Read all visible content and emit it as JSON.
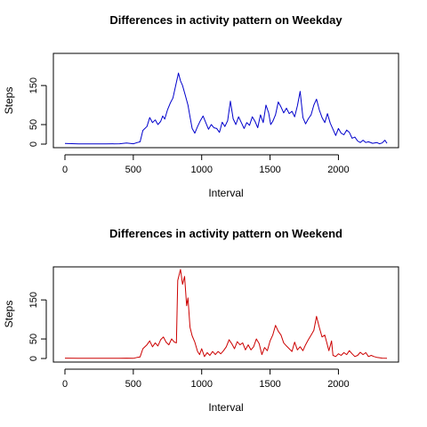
{
  "chart_data": [
    {
      "type": "line",
      "title": "Differences in activity pattern on Weekday",
      "xlabel": "Interval",
      "ylabel": "Steps",
      "xlim": [
        0,
        2355
      ],
      "ylim": [
        0,
        230
      ],
      "xticks": [
        0,
        500,
        1000,
        1500,
        2000
      ],
      "yticks": [
        0,
        50,
        150
      ],
      "color": "#0000CC",
      "series": [
        {
          "points": [
            [
              0,
              1.5
            ],
            [
              100,
              0.5
            ],
            [
              200,
              0.5
            ],
            [
              300,
              0.5
            ],
            [
              400,
              1
            ],
            [
              450,
              3
            ],
            [
              500,
              1
            ],
            [
              530,
              4
            ],
            [
              550,
              6
            ],
            [
              570,
              35
            ],
            [
              600,
              45
            ],
            [
              620,
              68
            ],
            [
              640,
              55
            ],
            [
              660,
              62
            ],
            [
              680,
              50
            ],
            [
              700,
              58
            ],
            [
              715,
              72
            ],
            [
              730,
              64
            ],
            [
              750,
              88
            ],
            [
              770,
              105
            ],
            [
              790,
              118
            ],
            [
              810,
              150
            ],
            [
              830,
              182
            ],
            [
              845,
              162
            ],
            [
              860,
              150
            ],
            [
              880,
              125
            ],
            [
              900,
              100
            ],
            [
              915,
              70
            ],
            [
              930,
              40
            ],
            [
              950,
              28
            ],
            [
              970,
              45
            ],
            [
              990,
              60
            ],
            [
              1010,
              72
            ],
            [
              1030,
              55
            ],
            [
              1050,
              38
            ],
            [
              1070,
              50
            ],
            [
              1090,
              42
            ],
            [
              1110,
              40
            ],
            [
              1130,
              30
            ],
            [
              1150,
              56
            ],
            [
              1170,
              45
            ],
            [
              1190,
              60
            ],
            [
              1210,
              110
            ],
            [
              1230,
              65
            ],
            [
              1250,
              50
            ],
            [
              1270,
              70
            ],
            [
              1290,
              55
            ],
            [
              1310,
              40
            ],
            [
              1330,
              55
            ],
            [
              1350,
              48
            ],
            [
              1370,
              70
            ],
            [
              1390,
              58
            ],
            [
              1410,
              42
            ],
            [
              1430,
              75
            ],
            [
              1450,
              55
            ],
            [
              1470,
              100
            ],
            [
              1490,
              80
            ],
            [
              1505,
              50
            ],
            [
              1520,
              58
            ],
            [
              1540,
              75
            ],
            [
              1560,
              108
            ],
            [
              1580,
              95
            ],
            [
              1600,
              80
            ],
            [
              1620,
              92
            ],
            [
              1640,
              78
            ],
            [
              1660,
              84
            ],
            [
              1680,
              70
            ],
            [
              1700,
              98
            ],
            [
              1720,
              135
            ],
            [
              1740,
              68
            ],
            [
              1760,
              52
            ],
            [
              1780,
              65
            ],
            [
              1800,
              75
            ],
            [
              1820,
              100
            ],
            [
              1840,
              115
            ],
            [
              1860,
              88
            ],
            [
              1880,
              68
            ],
            [
              1900,
              55
            ],
            [
              1920,
              78
            ],
            [
              1940,
              54
            ],
            [
              1960,
              38
            ],
            [
              1980,
              22
            ],
            [
              2000,
              40
            ],
            [
              2020,
              28
            ],
            [
              2040,
              24
            ],
            [
              2060,
              36
            ],
            [
              2080,
              30
            ],
            [
              2100,
              15
            ],
            [
              2120,
              18
            ],
            [
              2140,
              8
            ],
            [
              2160,
              4
            ],
            [
              2180,
              10
            ],
            [
              2200,
              4
            ],
            [
              2220,
              6
            ],
            [
              2250,
              2
            ],
            [
              2280,
              4
            ],
            [
              2300,
              1
            ],
            [
              2320,
              3
            ],
            [
              2340,
              10
            ],
            [
              2355,
              2
            ]
          ]
        }
      ]
    },
    {
      "type": "line",
      "title": "Differences in activity pattern on Weekend",
      "xlabel": "Interval",
      "ylabel": "Steps",
      "xlim": [
        0,
        2355
      ],
      "ylim": [
        0,
        230
      ],
      "xticks": [
        0,
        500,
        1000,
        1500,
        2000
      ],
      "yticks": [
        0,
        50,
        150
      ],
      "color": "#CC0000",
      "series": [
        {
          "points": [
            [
              0,
              1
            ],
            [
              100,
              0.5
            ],
            [
              200,
              0.5
            ],
            [
              300,
              0.5
            ],
            [
              400,
              0.5
            ],
            [
              450,
              1
            ],
            [
              500,
              0.5
            ],
            [
              530,
              3
            ],
            [
              550,
              4
            ],
            [
              570,
              25
            ],
            [
              600,
              35
            ],
            [
              620,
              45
            ],
            [
              640,
              30
            ],
            [
              660,
              40
            ],
            [
              680,
              32
            ],
            [
              700,
              48
            ],
            [
              720,
              55
            ],
            [
              740,
              42
            ],
            [
              760,
              35
            ],
            [
              780,
              50
            ],
            [
              800,
              42
            ],
            [
              815,
              40
            ],
            [
              825,
              200
            ],
            [
              845,
              228
            ],
            [
              860,
              190
            ],
            [
              875,
              210
            ],
            [
              890,
              135
            ],
            [
              900,
              155
            ],
            [
              915,
              80
            ],
            [
              930,
              58
            ],
            [
              950,
              42
            ],
            [
              970,
              18
            ],
            [
              985,
              10
            ],
            [
              1000,
              25
            ],
            [
              1020,
              5
            ],
            [
              1040,
              15
            ],
            [
              1060,
              8
            ],
            [
              1080,
              18
            ],
            [
              1100,
              10
            ],
            [
              1120,
              18
            ],
            [
              1140,
              12
            ],
            [
              1160,
              20
            ],
            [
              1180,
              30
            ],
            [
              1200,
              48
            ],
            [
              1220,
              38
            ],
            [
              1240,
              25
            ],
            [
              1260,
              43
            ],
            [
              1280,
              35
            ],
            [
              1300,
              40
            ],
            [
              1320,
              22
            ],
            [
              1340,
              35
            ],
            [
              1360,
              22
            ],
            [
              1380,
              30
            ],
            [
              1400,
              50
            ],
            [
              1420,
              38
            ],
            [
              1440,
              10
            ],
            [
              1460,
              28
            ],
            [
              1480,
              20
            ],
            [
              1500,
              45
            ],
            [
              1520,
              60
            ],
            [
              1540,
              85
            ],
            [
              1560,
              70
            ],
            [
              1580,
              60
            ],
            [
              1600,
              40
            ],
            [
              1620,
              32
            ],
            [
              1640,
              25
            ],
            [
              1660,
              18
            ],
            [
              1680,
              42
            ],
            [
              1700,
              22
            ],
            [
              1720,
              30
            ],
            [
              1740,
              20
            ],
            [
              1760,
              35
            ],
            [
              1780,
              48
            ],
            [
              1800,
              60
            ],
            [
              1820,
              72
            ],
            [
              1840,
              108
            ],
            [
              1860,
              80
            ],
            [
              1880,
              55
            ],
            [
              1900,
              60
            ],
            [
              1915,
              40
            ],
            [
              1930,
              20
            ],
            [
              1950,
              45
            ],
            [
              1960,
              8
            ],
            [
              1980,
              5
            ],
            [
              2000,
              12
            ],
            [
              2020,
              8
            ],
            [
              2040,
              15
            ],
            [
              2060,
              10
            ],
            [
              2080,
              20
            ],
            [
              2100,
              12
            ],
            [
              2120,
              5
            ],
            [
              2140,
              8
            ],
            [
              2160,
              16
            ],
            [
              2180,
              10
            ],
            [
              2200,
              15
            ],
            [
              2220,
              5
            ],
            [
              2240,
              8
            ],
            [
              2260,
              5
            ],
            [
              2280,
              3
            ],
            [
              2300,
              2
            ],
            [
              2320,
              1
            ],
            [
              2355,
              0.5
            ]
          ]
        }
      ]
    }
  ]
}
